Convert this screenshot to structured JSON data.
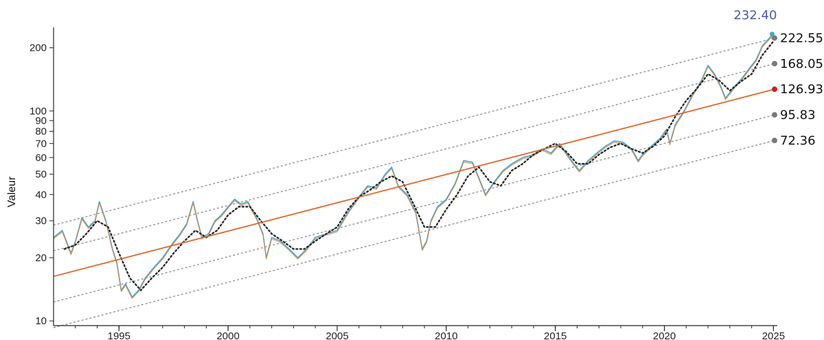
{
  "chart_data": {
    "type": "line",
    "ylabel": "Valeur",
    "yscale": "log",
    "ylim": [
      9.5,
      250
    ],
    "xlim": [
      1992.0,
      2025.05
    ],
    "grid": false,
    "x_ticks": [
      1995,
      2000,
      2005,
      2010,
      2015,
      2020,
      2025
    ],
    "x_tick_labels": [
      "1995",
      "2000",
      "2005",
      "2010",
      "2015",
      "2020",
      "2025"
    ],
    "y_ticks": [
      10,
      20,
      30,
      40,
      50,
      60,
      70,
      80,
      90,
      100,
      200
    ],
    "y_tick_labels": [
      "10",
      "20",
      "30",
      "40",
      "50",
      "60",
      "70",
      "80",
      "90",
      "100",
      "200"
    ],
    "colors": {
      "price": "#3fa9d6",
      "price_smooth": "#d98b43",
      "moving_average": "#2b2b2b",
      "trend": "#e0672a",
      "channel": "#8a8a8a",
      "trend_dot": "#cc2222",
      "last_value": "#4a5aa8"
    },
    "series": [
      {
        "name": "",
        "role": "price",
        "x": [
          1992.0,
          1992.4,
          1992.8,
          1993.0,
          1993.3,
          1993.6,
          1993.9,
          1994.1,
          1994.4,
          1994.7,
          1994.9,
          1995.1,
          1995.3,
          1995.6,
          1995.9,
          1996.2,
          1996.6,
          1997.0,
          1997.4,
          1997.8,
          1998.1,
          1998.4,
          1998.6,
          1998.8,
          1999.1,
          1999.4,
          1999.7,
          2000.0,
          2000.3,
          2000.6,
          2000.9,
          2001.3,
          2001.6,
          2001.75,
          2002.0,
          2002.4,
          2002.8,
          2003.2,
          2003.6,
          2004.0,
          2004.5,
          2005.0,
          2005.5,
          2006.0,
          2006.4,
          2006.8,
          2007.2,
          2007.5,
          2007.8,
          2008.2,
          2008.6,
          2008.9,
          2009.1,
          2009.3,
          2009.6,
          2010.0,
          2010.4,
          2010.8,
          2011.2,
          2011.5,
          2011.8,
          2012.2,
          2012.6,
          2013.0,
          2013.5,
          2014.0,
          2014.4,
          2014.8,
          2015.2,
          2015.5,
          2015.8,
          2016.1,
          2016.5,
          2016.9,
          2017.3,
          2017.7,
          2018.1,
          2018.5,
          2018.8,
          2019.0,
          2019.4,
          2019.8,
          2020.1,
          2020.25,
          2020.5,
          2020.9,
          2021.3,
          2021.7,
          2022.0,
          2022.3,
          2022.6,
          2022.8,
          2023.2,
          2023.6,
          2023.9,
          2024.2,
          2024.5,
          2024.8,
          2025.0
        ],
        "values": [
          25,
          27,
          21,
          24,
          31,
          28,
          30,
          37,
          30,
          22,
          19,
          14,
          15,
          13,
          14,
          16,
          18,
          20,
          23,
          26,
          29,
          37,
          30,
          25,
          26,
          30,
          32,
          35,
          38,
          36,
          37,
          31,
          26,
          20,
          25,
          24,
          22,
          20,
          22,
          25,
          26,
          27,
          33,
          39,
          44,
          43,
          50,
          54,
          44,
          40,
          33,
          22,
          24,
          30,
          35,
          38,
          45,
          58,
          57,
          48,
          40,
          46,
          52,
          56,
          60,
          62,
          66,
          63,
          70,
          63,
          57,
          52,
          58,
          63,
          68,
          72,
          71,
          66,
          58,
          62,
          68,
          74,
          82,
          70,
          86,
          100,
          120,
          140,
          165,
          150,
          130,
          115,
          130,
          145,
          160,
          175,
          205,
          222,
          232.4
        ]
      },
      {
        "name": "",
        "role": "moving_average",
        "x": [
          1992.5,
          1993.0,
          1993.5,
          1994.0,
          1994.5,
          1995.0,
          1995.5,
          1996.0,
          1996.5,
          1997.0,
          1997.5,
          1998.0,
          1998.5,
          1999.0,
          1999.5,
          2000.0,
          2000.5,
          2001.0,
          2001.5,
          2002.0,
          2002.5,
          2003.0,
          2003.5,
          2004.0,
          2004.5,
          2005.0,
          2005.5,
          2006.0,
          2006.5,
          2007.0,
          2007.5,
          2008.0,
          2008.5,
          2009.0,
          2009.5,
          2010.0,
          2010.5,
          2011.0,
          2011.5,
          2012.0,
          2012.5,
          2013.0,
          2013.5,
          2014.0,
          2014.5,
          2015.0,
          2015.5,
          2016.0,
          2016.5,
          2017.0,
          2017.5,
          2018.0,
          2018.5,
          2019.0,
          2019.5,
          2020.0,
          2020.5,
          2021.0,
          2021.5,
          2022.0,
          2022.5,
          2023.0,
          2023.5,
          2024.0,
          2024.5,
          2025.0
        ],
        "values": [
          22,
          23,
          26,
          30,
          28,
          21,
          16,
          14,
          16,
          18,
          21,
          24,
          27,
          25,
          27,
          32,
          35,
          35,
          30,
          26,
          24,
          22,
          22,
          24,
          26,
          28,
          34,
          39,
          42,
          46,
          49,
          46,
          36,
          28,
          28,
          34,
          40,
          49,
          54,
          46,
          44,
          52,
          56,
          62,
          66,
          70,
          64,
          56,
          56,
          62,
          67,
          70,
          66,
          63,
          68,
          76,
          94,
          112,
          128,
          150,
          140,
          125,
          138,
          150,
          185,
          215
        ]
      },
      {
        "name": "",
        "role": "trend",
        "x": [
          1992.0,
          2025.05
        ],
        "values": [
          16.3,
          126.93
        ]
      }
    ],
    "channel_levels": [
      {
        "label": "222.55",
        "value": 222.55,
        "role": "channel"
      },
      {
        "label": "168.05",
        "value": 168.05,
        "role": "channel"
      },
      {
        "label": "126.93",
        "value": 126.93,
        "role": "trend"
      },
      {
        "label": "95.83",
        "value": 95.83,
        "role": "channel"
      },
      {
        "label": "72.36",
        "value": 72.36,
        "role": "channel"
      }
    ],
    "last_value": {
      "label": "232.40",
      "value": 232.4,
      "x": 2025.0
    }
  }
}
